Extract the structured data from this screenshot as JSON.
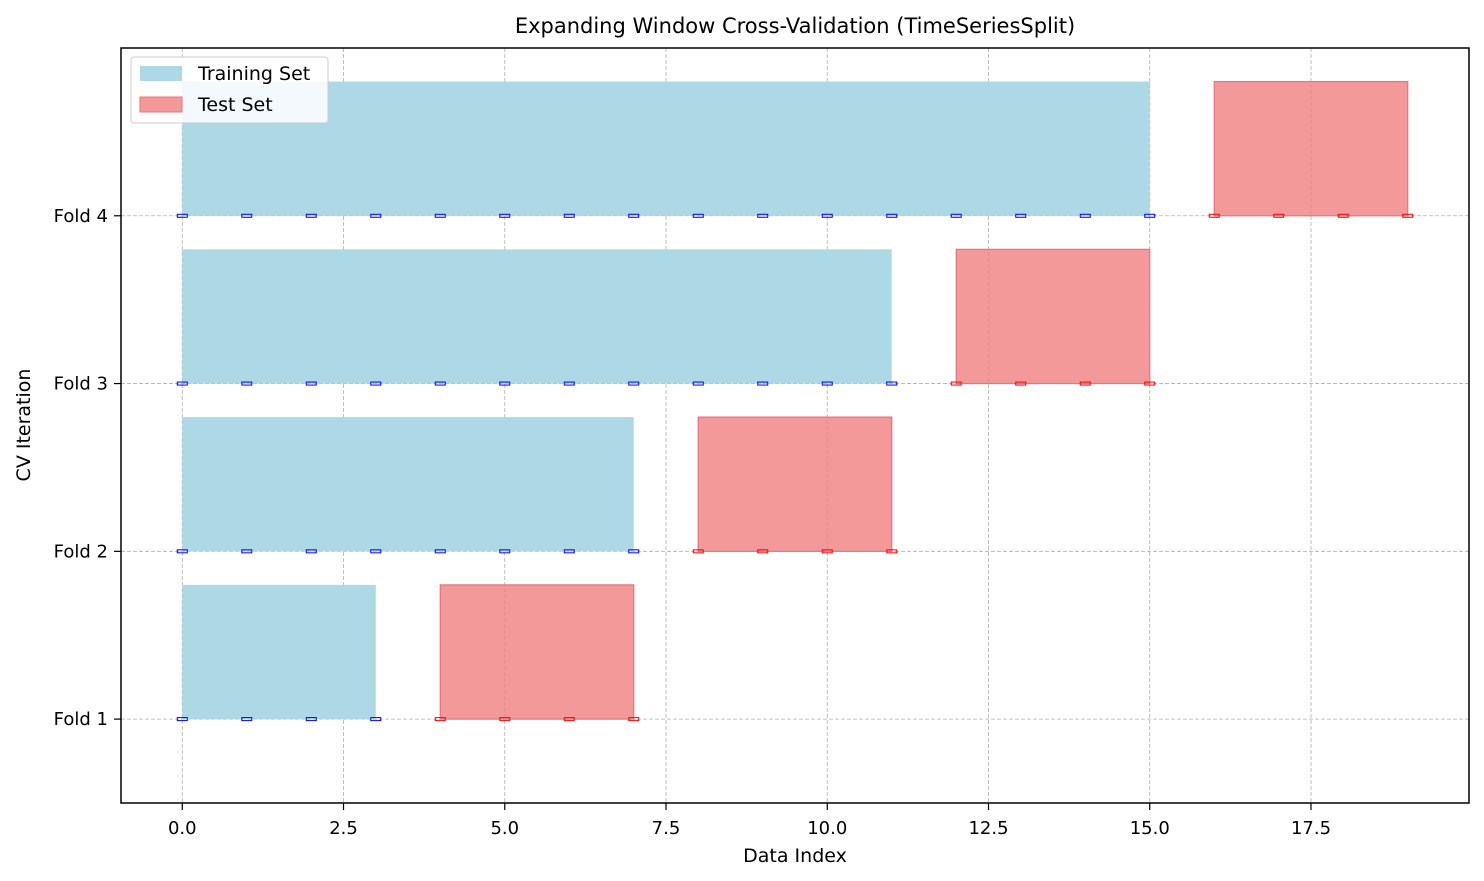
{
  "chart_data": {
    "type": "bar",
    "orientation": "horizontal",
    "title": "Expanding Window Cross-Validation (TimeSeriesSplit)",
    "xlabel": "Data Index",
    "ylabel": "CV Iteration",
    "xlim": [
      -0.95,
      19.95
    ],
    "ylim": [
      0.5,
      5.0
    ],
    "grid": true,
    "legend_position": "top-left",
    "x_ticks": [
      {
        "value": 0,
        "label": "0.0"
      },
      {
        "value": 2.5,
        "label": "2.5"
      },
      {
        "value": 5,
        "label": "5.0"
      },
      {
        "value": 7.5,
        "label": "7.5"
      },
      {
        "value": 10,
        "label": "10.0"
      },
      {
        "value": 12.5,
        "label": "12.5"
      },
      {
        "value": 15,
        "label": "15.0"
      },
      {
        "value": 17.5,
        "label": "17.5"
      }
    ],
    "y_ticks": [
      {
        "value": 1,
        "label": "Fold 1"
      },
      {
        "value": 2,
        "label": "Fold 2"
      },
      {
        "value": 3,
        "label": "Fold 3"
      },
      {
        "value": 4,
        "label": "Fold 4"
      }
    ],
    "series": [
      {
        "name": "Training Set",
        "color": "#add8e6",
        "marker_color": "#0000ff",
        "bars": [
          {
            "fold": 1,
            "start": 0,
            "end": 3
          },
          {
            "fold": 2,
            "start": 0,
            "end": 7
          },
          {
            "fold": 3,
            "start": 0,
            "end": 11
          },
          {
            "fold": 4,
            "start": 0,
            "end": 15
          }
        ]
      },
      {
        "name": "Test Set",
        "color": "#f08080",
        "marker_color": "#ff0000",
        "bars": [
          {
            "fold": 1,
            "start": 4,
            "end": 7
          },
          {
            "fold": 2,
            "start": 8,
            "end": 11
          },
          {
            "fold": 3,
            "start": 12,
            "end": 15
          },
          {
            "fold": 4,
            "start": 16,
            "end": 19
          }
        ]
      }
    ],
    "bar_height": 0.8
  }
}
